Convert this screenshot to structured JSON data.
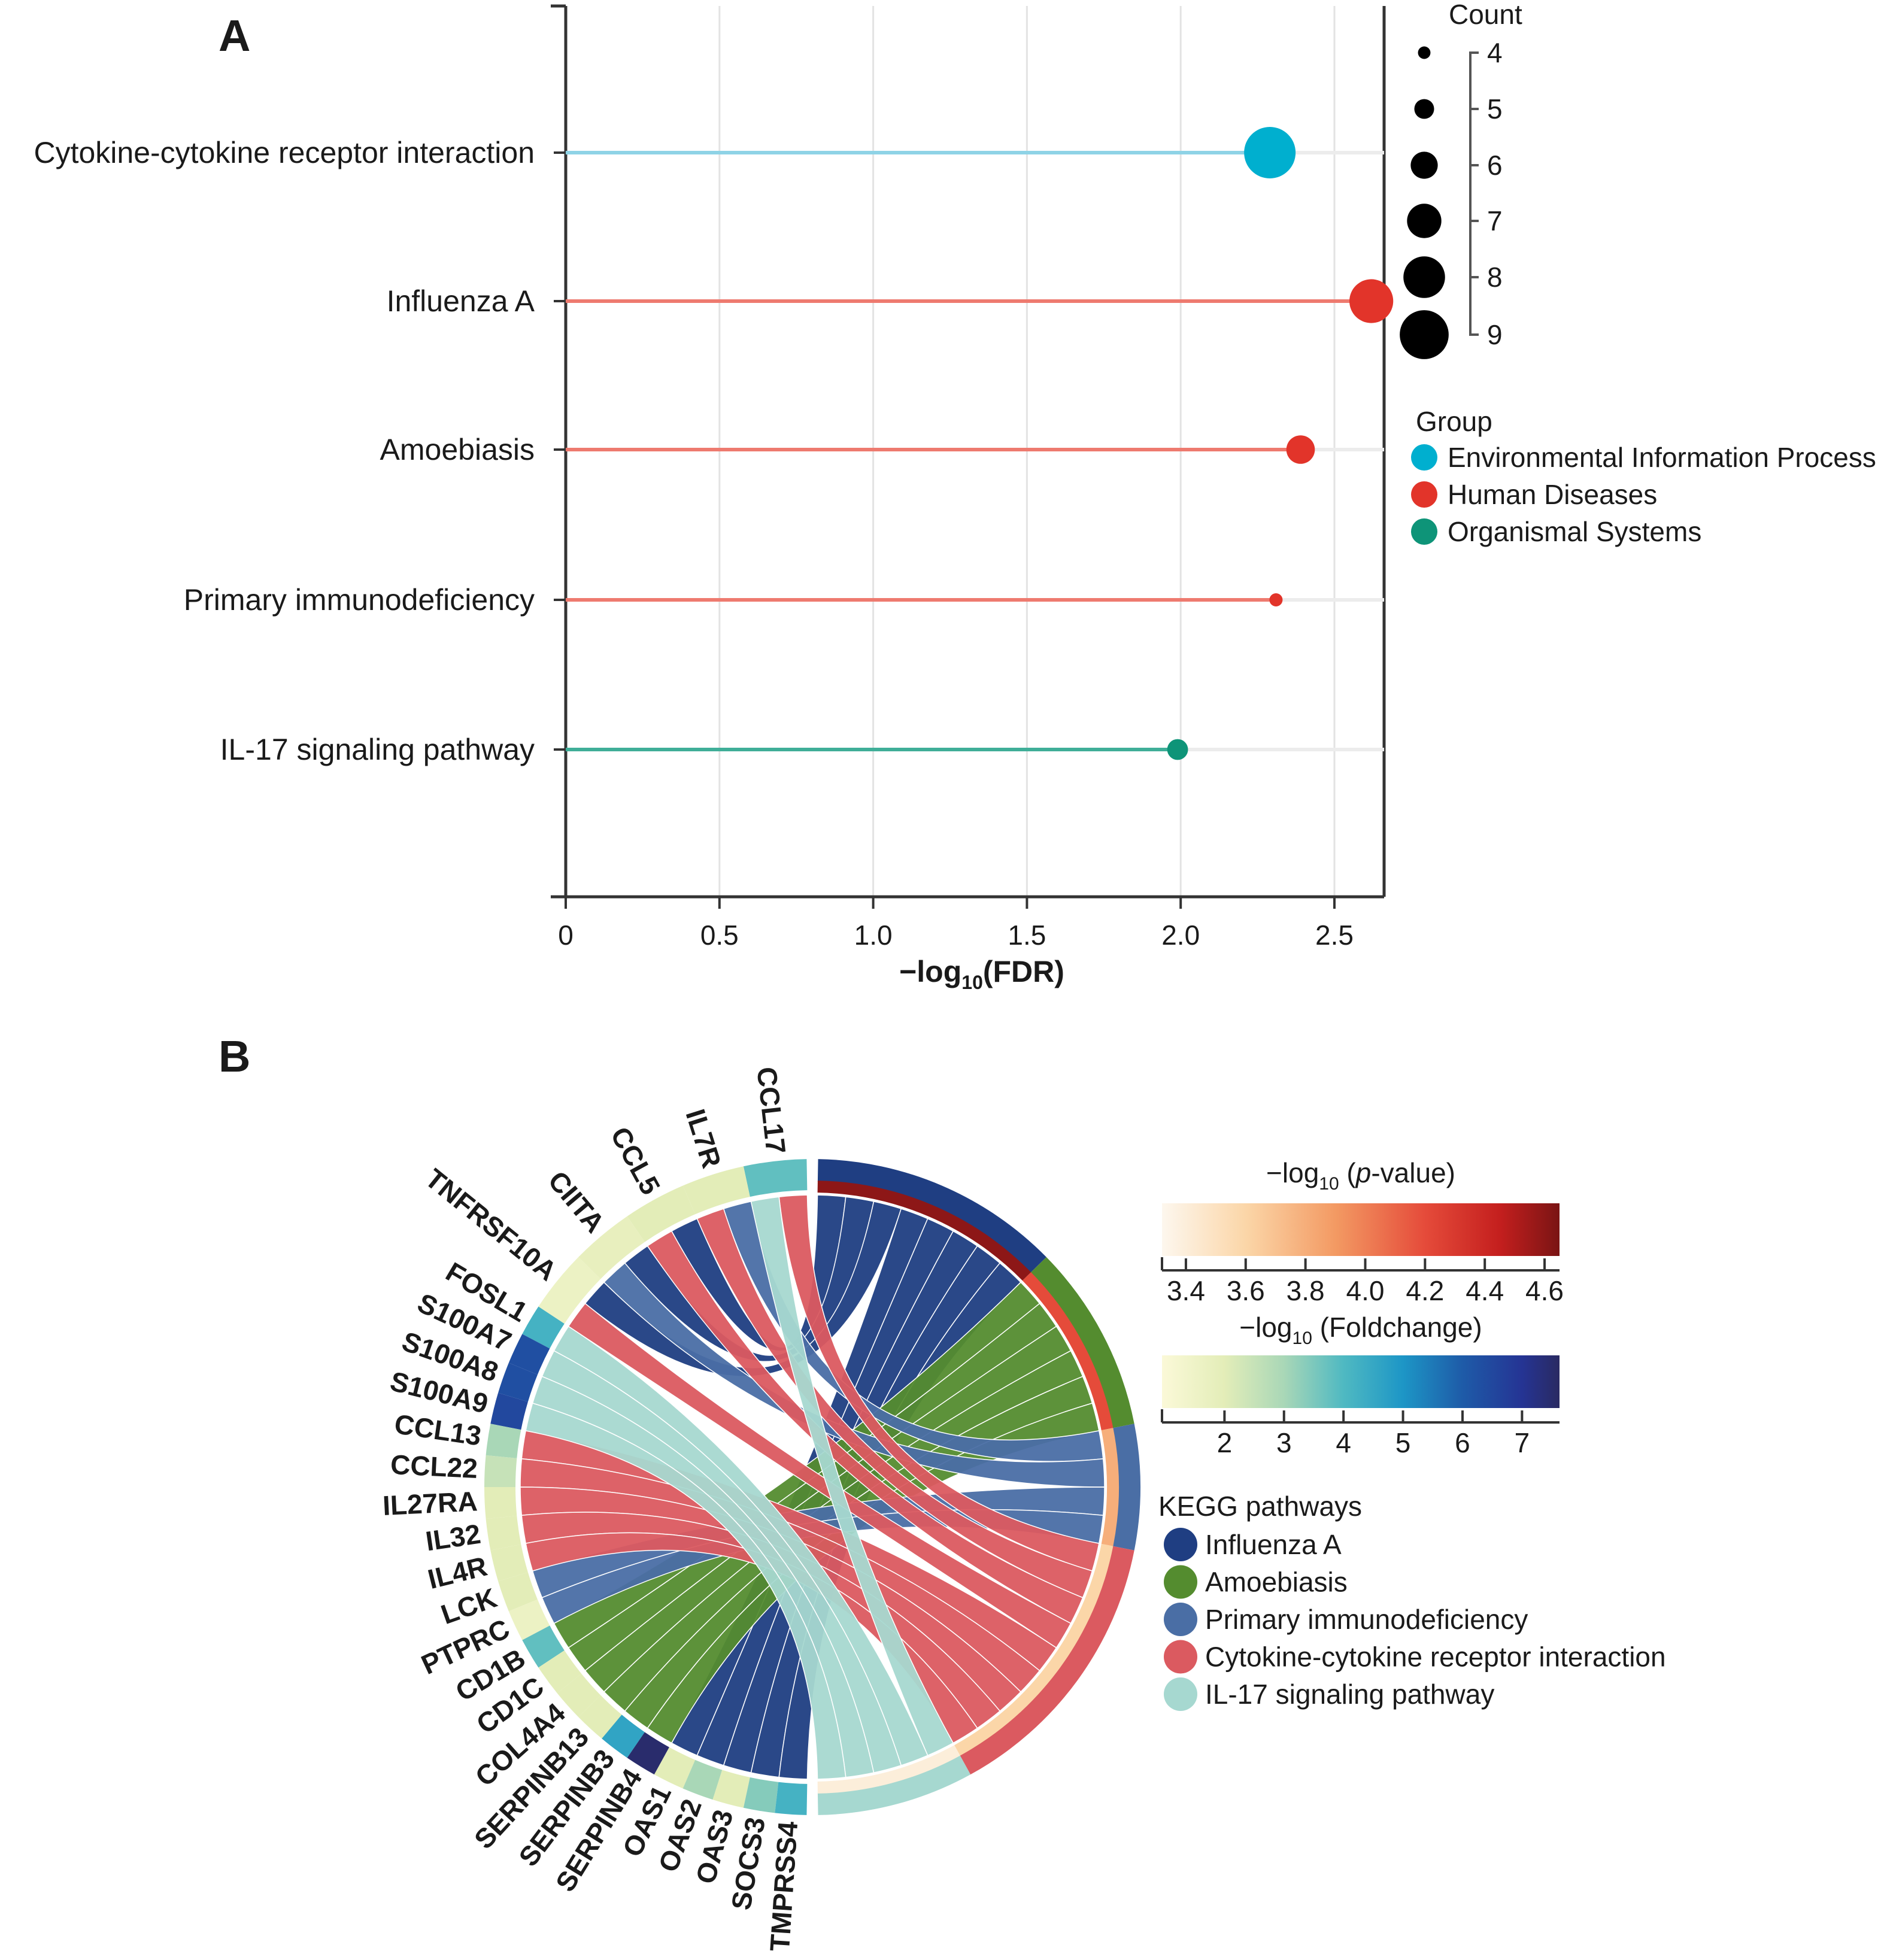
{
  "panel_labels": [
    "A",
    "B"
  ],
  "chart_data": [
    {
      "type": "scatter",
      "subtype": "lollipop",
      "panel": "A",
      "categories": [
        "Cytokine-cytokine receptor interaction",
        "Influenza A",
        "Amoebiasis",
        "Primary immunodeficiency",
        "IL-17 signaling pathway"
      ],
      "values": [
        2.29,
        2.62,
        2.39,
        2.31,
        1.99
      ],
      "counts": [
        9,
        8,
        6,
        4,
        5
      ],
      "groups": [
        "Environmental Information Process",
        "Human Diseases",
        "Human Diseases",
        "Human Diseases",
        "Organismal Systems"
      ],
      "xlabel": {
        "pre": "−log",
        "sub": "10",
        "post": "(FDR)"
      },
      "xlim": [
        0,
        2.68
      ],
      "xticks": [
        "0",
        "0.5",
        "1.0",
        "1.5",
        "2.0",
        "2.5"
      ],
      "xtick_values": [
        0,
        0.5,
        1.0,
        1.5,
        2.0,
        2.5
      ],
      "grid": true,
      "size_legend": {
        "title": "Count",
        "values": [
          4,
          5,
          6,
          7,
          8,
          9
        ],
        "labels": [
          "4",
          "5",
          "6",
          "7",
          "8",
          "9"
        ]
      },
      "color_legend": {
        "title": "Group",
        "items": [
          {
            "label": "Environmental Information Process",
            "color": "#00AFCF"
          },
          {
            "label": "Human Diseases",
            "color": "#E2342A"
          },
          {
            "label": "Organismal Systems",
            "color": "#0E9478"
          }
        ]
      },
      "legend_position": "right"
    },
    {
      "type": "chord",
      "panel": "B",
      "genes": [
        "CCL17",
        "IL7R",
        "CCL5",
        "CIITA",
        "TNFRSF10A",
        "FOSL1",
        "S100A7",
        "S100A8",
        "S100A9",
        "CCL13",
        "CCL22",
        "IL27RA",
        "IL32",
        "IL4R",
        "LCK",
        "PTPRC",
        "CD1B",
        "CD1C",
        "COL4A4",
        "SERPINB13",
        "SERPINB3",
        "SERPINB4",
        "OAS1",
        "OAS2",
        "OAS3",
        "SOCS3",
        "TMPRSS4"
      ],
      "gene_foldchange": [
        3.8,
        2.0,
        2.0,
        1.8,
        1.6,
        4.2,
        6.3,
        6.3,
        6.5,
        3.0,
        2.5,
        2.0,
        2.0,
        2.0,
        2.0,
        1.6,
        3.8,
        2.0,
        2.0,
        2.0,
        4.6,
        7.5,
        2.0,
        3.0,
        2.0,
        3.4,
        4.2
      ],
      "pathways": [
        {
          "name": "Influenza A",
          "color": "#1F3E82",
          "neg_log10_p": 4.6,
          "genes": [
            "CCL5",
            "CIITA",
            "TNFRSF10A",
            "OAS1",
            "OAS2",
            "OAS3",
            "SOCS3",
            "TMPRSS4"
          ]
        },
        {
          "name": "Amoebiasis",
          "color": "#548C2F",
          "neg_log10_p": 4.2,
          "genes": [
            "CD1B",
            "CD1C",
            "COL4A4",
            "SERPINB13",
            "SERPINB3",
            "SERPINB4"
          ]
        },
        {
          "name": "Primary immunodeficiency",
          "color": "#4A6EA5",
          "neg_log10_p": 3.8,
          "genes": [
            "IL7R",
            "CIITA",
            "LCK",
            "PTPRC"
          ]
        },
        {
          "name": "Cytokine-cytokine receptor interaction",
          "color": "#DB5A60",
          "neg_log10_p": 3.6,
          "genes": [
            "CCL17",
            "IL7R",
            "CCL5",
            "TNFRSF10A",
            "CCL13",
            "CCL22",
            "IL27RA",
            "IL32",
            "IL4R"
          ]
        },
        {
          "name": "IL-17 signaling pathway",
          "color": "#A6D8D0",
          "neg_log10_p": 3.4,
          "genes": [
            "CCL17",
            "FOSL1",
            "S100A7",
            "S100A8",
            "S100A9"
          ]
        }
      ],
      "pvalue_legend": {
        "title": {
          "pre": "−log",
          "sub": "10",
          "post": " (",
          "ital": "p",
          "post2": "-value)"
        },
        "range": [
          3.32,
          4.65
        ],
        "ticks": [
          "3.4",
          "3.6",
          "3.8",
          "4.0",
          "4.2",
          "4.4",
          "4.6"
        ],
        "tick_values": [
          3.4,
          3.6,
          3.8,
          4.0,
          4.2,
          4.4,
          4.6
        ],
        "stops": [
          [
            3.32,
            "#FDF7EE"
          ],
          [
            3.6,
            "#FBD6A8"
          ],
          [
            3.9,
            "#F39A63"
          ],
          [
            4.2,
            "#E54B3A"
          ],
          [
            4.45,
            "#C41F1E"
          ],
          [
            4.65,
            "#7A1414"
          ]
        ]
      },
      "foldchange_legend": {
        "title": {
          "pre": "−log",
          "sub": "10",
          "post": " (Foldchange)"
        },
        "range": [
          0.95,
          7.63
        ],
        "ticks": [
          "2",
          "3",
          "4",
          "5",
          "6",
          "7"
        ],
        "tick_values": [
          2,
          3,
          4,
          5,
          6,
          7
        ],
        "stops": [
          [
            0.95,
            "#FBF9D8"
          ],
          [
            2,
            "#E3EDB8"
          ],
          [
            3,
            "#A9D7B7"
          ],
          [
            4,
            "#4FB9C2"
          ],
          [
            5,
            "#1D96C6"
          ],
          [
            6,
            "#1E5BA8"
          ],
          [
            7,
            "#253494"
          ],
          [
            7.63,
            "#2A2A62"
          ]
        ]
      },
      "kegg_legend_title": "KEGG pathways"
    }
  ]
}
